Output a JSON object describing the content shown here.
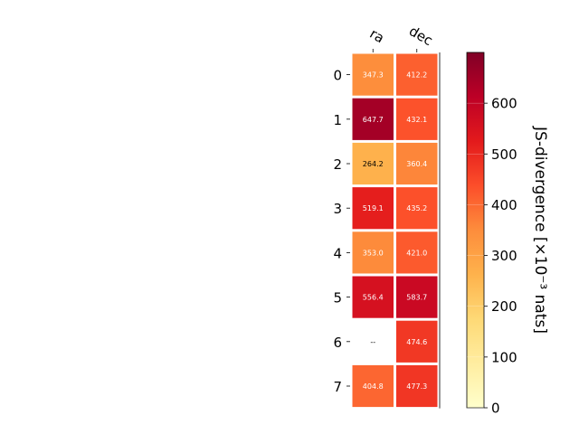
{
  "chart_data": {
    "type": "heatmap",
    "columns": [
      "ra",
      "dec"
    ],
    "rows": [
      "0",
      "1",
      "2",
      "3",
      "4",
      "5",
      "6",
      "7"
    ],
    "values": [
      [
        347.3,
        412.2
      ],
      [
        647.7,
        432.1
      ],
      [
        264.2,
        360.4
      ],
      [
        519.1,
        435.2
      ],
      [
        353.0,
        421.0
      ],
      [
        556.4,
        583.7
      ],
      [
        null,
        474.6
      ],
      [
        404.8,
        477.3
      ]
    ],
    "cell_labels": [
      [
        "347.3",
        "412.2"
      ],
      [
        "647.7",
        "432.1"
      ],
      [
        "264.2",
        "360.4"
      ],
      [
        "519.1",
        "435.2"
      ],
      [
        "353.0",
        "421.0"
      ],
      [
        "556.4",
        "583.7"
      ],
      [
        "--",
        "474.6"
      ],
      [
        "404.8",
        "477.3"
      ]
    ],
    "colormap": "YlOrRd",
    "colorbar": {
      "label": "JS-divergence [×10⁻³ nats]",
      "range": [
        0,
        700
      ],
      "ticks": [
        0,
        100,
        200,
        300,
        400,
        500,
        600
      ],
      "tick_labels": [
        "0",
        "100",
        "200",
        "300",
        "400",
        "500",
        "600"
      ]
    },
    "colors": {
      "ylorrd_stops": [
        "#ffffcc",
        "#ffeda0",
        "#fed976",
        "#feb24c",
        "#fd8d3c",
        "#fc4e2a",
        "#e31a1c",
        "#bd0026",
        "#800026"
      ],
      "missing_cell": "#ffffff",
      "cell_border": "#ffffff"
    }
  }
}
